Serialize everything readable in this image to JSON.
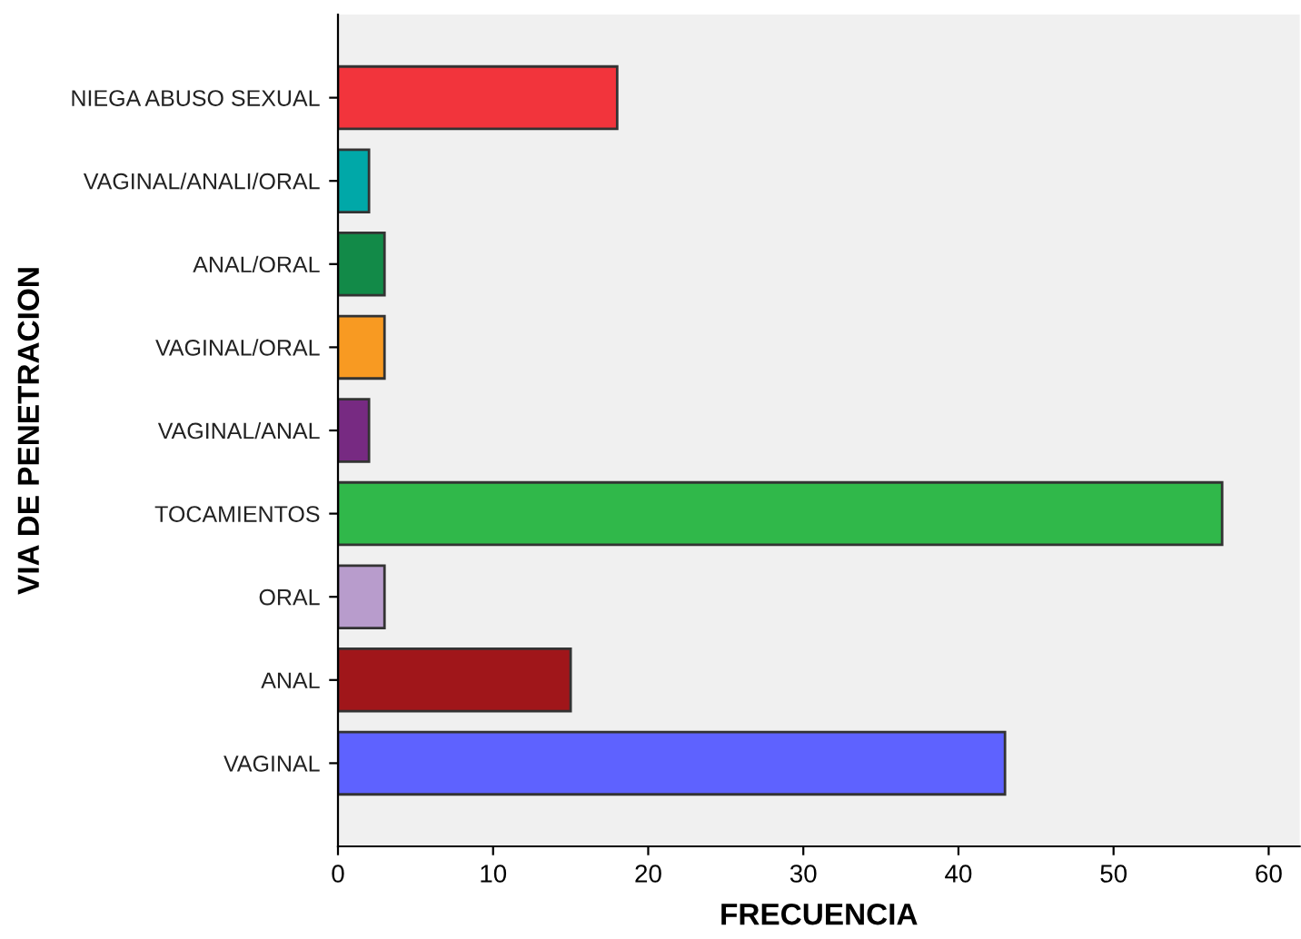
{
  "chart_data": {
    "type": "bar",
    "orientation": "horizontal",
    "xlabel": "FRECUENCIA",
    "ylabel": "VIA DE PENETRACION",
    "categories": [
      "NIEGA ABUSO SEXUAL",
      "VAGINAL/ANALI/ORAL",
      "ANAL/ORAL",
      "VAGINAL/ORAL",
      "VAGINAL/ANAL",
      "TOCAMIENTOS",
      "ORAL",
      "ANAL",
      "VAGINAL"
    ],
    "values": [
      18,
      2,
      3,
      3,
      2,
      57,
      3,
      15,
      43
    ],
    "colors": [
      "#f2343c",
      "#00a8a8",
      "#128a48",
      "#f89a22",
      "#772a82",
      "#30b84a",
      "#b89ccc",
      "#a0161a",
      "#5e62ff"
    ],
    "xlim": [
      0,
      62
    ],
    "xticks": [
      0,
      10,
      20,
      30,
      40,
      50,
      60
    ],
    "grid": false
  }
}
